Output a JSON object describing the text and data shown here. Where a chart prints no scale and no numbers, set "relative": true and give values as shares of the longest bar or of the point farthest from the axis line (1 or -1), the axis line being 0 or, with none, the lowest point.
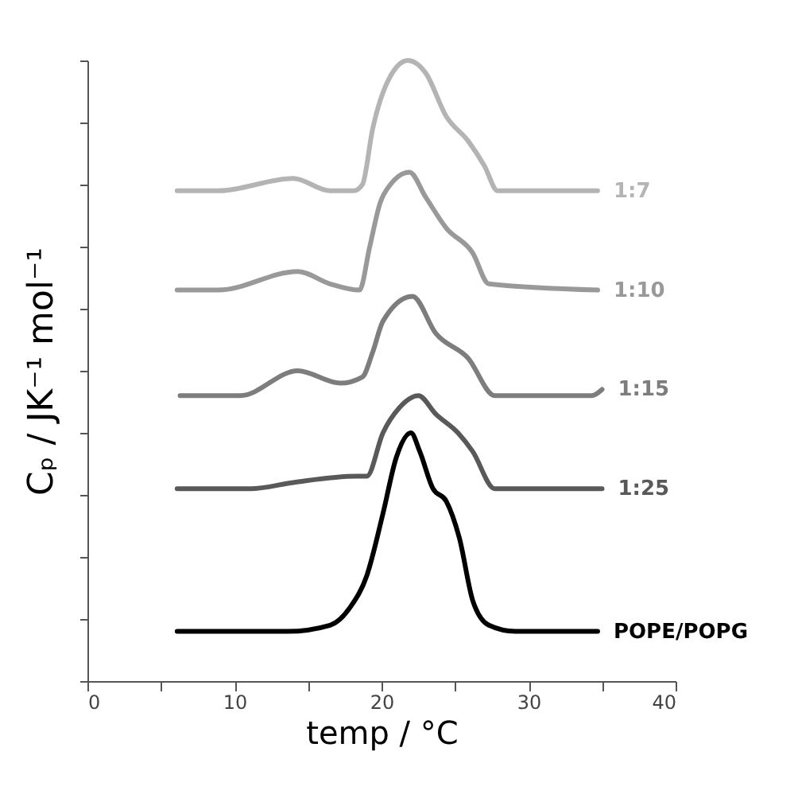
{
  "chart_data": {
    "type": "line",
    "relative": true,
    "xlabel": "temp / °C",
    "ylabel": "Cₚ / JK⁻¹ mol⁻¹",
    "xlim": [
      0,
      40
    ],
    "xticks": [
      0,
      {
        "value": 5,
        "label": null
      },
      10,
      {
        "value": 15,
        "label": null
      },
      20,
      {
        "value": 25,
        "label": null
      },
      30,
      {
        "value": 35,
        "label": null
      },
      40
    ],
    "grid": false,
    "legend": false,
    "marker": "none",
    "line_style": "solid",
    "series": [
      {
        "name": "1:7",
        "color": "#b4b4b4",
        "x": [
          6.1,
          8.9,
          14.0,
          16.5,
          18.1,
          18.7,
          19.4,
          20.5,
          21.8,
          23.0,
          24.4,
          25.9,
          27.0,
          27.9,
          34.7
        ],
        "values": [
          0.79,
          0.79,
          0.81,
          0.79,
          0.79,
          0.8,
          0.89,
          0.97,
          1.0,
          0.98,
          0.91,
          0.87,
          0.83,
          0.79,
          0.79
        ]
      },
      {
        "name": "1:10",
        "color": "#999999",
        "x": [
          6.1,
          8.9,
          14.3,
          16.5,
          18.5,
          19.2,
          19.9,
          20.6,
          21.9,
          23.0,
          24.4,
          26.2,
          27.3,
          34.7
        ],
        "values": [
          0.63,
          0.63,
          0.66,
          0.64,
          0.63,
          0.7,
          0.77,
          0.8,
          0.82,
          0.78,
          0.73,
          0.69,
          0.64,
          0.63
        ]
      },
      {
        "name": "1:15",
        "color": "#7d7d7d",
        "x": [
          6.3,
          10.4,
          14.3,
          17.2,
          18.7,
          19.4,
          20.1,
          22.1,
          23.7,
          25.9,
          27.7,
          34.3,
          35.0
        ],
        "values": [
          0.46,
          0.46,
          0.5,
          0.48,
          0.49,
          0.53,
          0.58,
          0.62,
          0.56,
          0.52,
          0.46,
          0.46,
          0.47
        ]
      },
      {
        "name": "1:25",
        "color": "#595959",
        "x": [
          6.1,
          11.1,
          14.0,
          18.3,
          19.0,
          20.1,
          21.2,
          22.5,
          23.7,
          25.2,
          26.2,
          27.7,
          35.0
        ],
        "values": [
          0.31,
          0.31,
          0.32,
          0.33,
          0.33,
          0.4,
          0.44,
          0.46,
          0.43,
          0.4,
          0.37,
          0.31,
          0.31
        ]
      },
      {
        "name": "POPE/POPG",
        "color": "#000000",
        "x": [
          6.1,
          13.6,
          16.5,
          17.9,
          19.0,
          20.1,
          21.0,
          22.0,
          22.6,
          23.5,
          24.4,
          25.3,
          26.2,
          27.3,
          29.1,
          34.7
        ],
        "values": [
          0.08,
          0.08,
          0.09,
          0.12,
          0.17,
          0.27,
          0.36,
          0.4,
          0.37,
          0.31,
          0.29,
          0.23,
          0.13,
          0.09,
          0.08,
          0.08
        ]
      }
    ]
  }
}
